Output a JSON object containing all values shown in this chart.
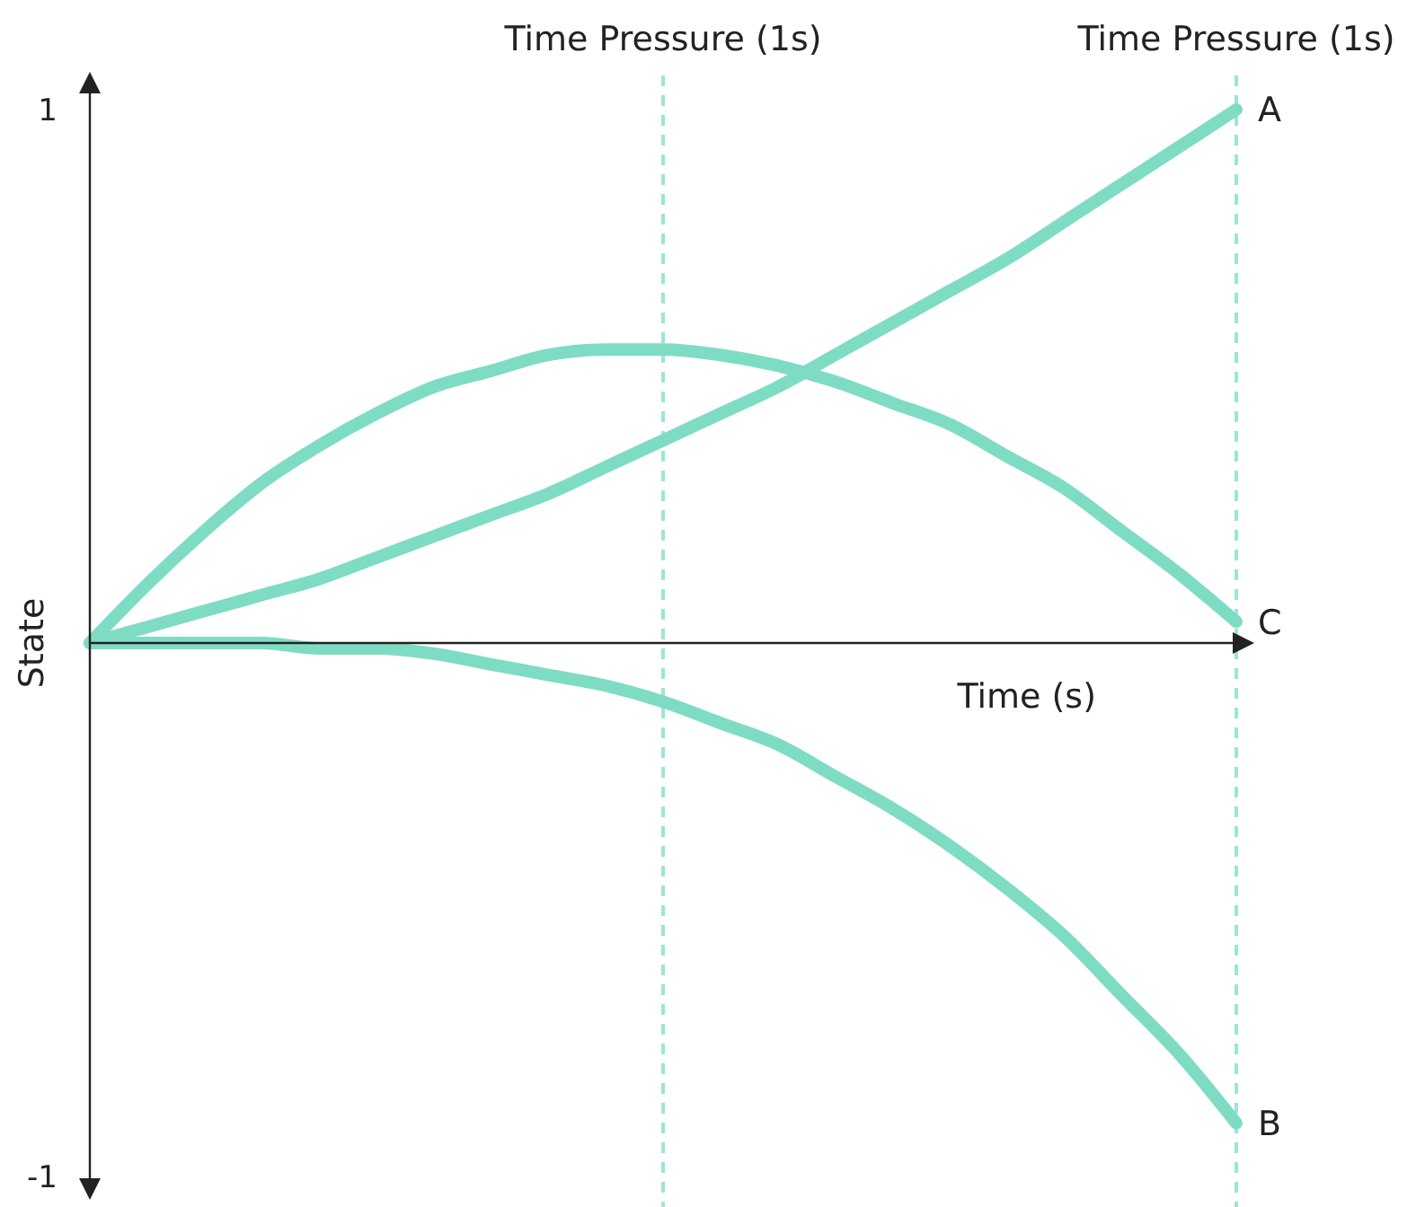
{
  "chart_data": {
    "type": "line",
    "xlabel": "Time (s)",
    "ylabel": "State",
    "x": [
      0,
      0.05,
      0.1,
      0.15,
      0.2,
      0.25,
      0.3,
      0.35,
      0.4,
      0.45,
      0.5,
      0.55,
      0.6,
      0.65,
      0.7,
      0.75,
      0.8,
      0.85,
      0.9,
      0.95,
      1
    ],
    "xlim": [
      0,
      1
    ],
    "ylim": [
      -1,
      1
    ],
    "yticks": [
      -1,
      1
    ],
    "tick_labels": "y",
    "legend": false,
    "line_style": "solid",
    "series": [
      {
        "name": "A",
        "color": "#7fdcc4",
        "values": [
          0,
          0.03,
          0.06,
          0.09,
          0.12,
          0.16,
          0.2,
          0.24,
          0.28,
          0.33,
          0.38,
          0.43,
          0.48,
          0.54,
          0.6,
          0.66,
          0.72,
          0.79,
          0.86,
          0.93,
          1.0
        ]
      },
      {
        "name": "B",
        "color": "#7fdcc4",
        "values": [
          0,
          0,
          0,
          0,
          -0.01,
          -0.01,
          -0.02,
          -0.04,
          -0.06,
          -0.08,
          -0.11,
          -0.15,
          -0.19,
          -0.25,
          -0.31,
          -0.38,
          -0.46,
          -0.55,
          -0.66,
          -0.77,
          -0.9
        ]
      },
      {
        "name": "C",
        "color": "#7fdcc4",
        "values": [
          0,
          0.11,
          0.21,
          0.3,
          0.37,
          0.43,
          0.48,
          0.51,
          0.54,
          0.55,
          0.55,
          0.54,
          0.52,
          0.49,
          0.45,
          0.41,
          0.35,
          0.29,
          0.21,
          0.13,
          0.04
        ]
      }
    ],
    "ref_lines": [
      {
        "axis": "x",
        "value": 0.5,
        "label": "Time Pressure (1s)",
        "color": "#9be6d3",
        "line_style": "dashed"
      },
      {
        "axis": "x",
        "value": 1,
        "label": "Time Pressure (1s)",
        "color": "#9be6d3",
        "line_style": "dashed"
      }
    ]
  }
}
